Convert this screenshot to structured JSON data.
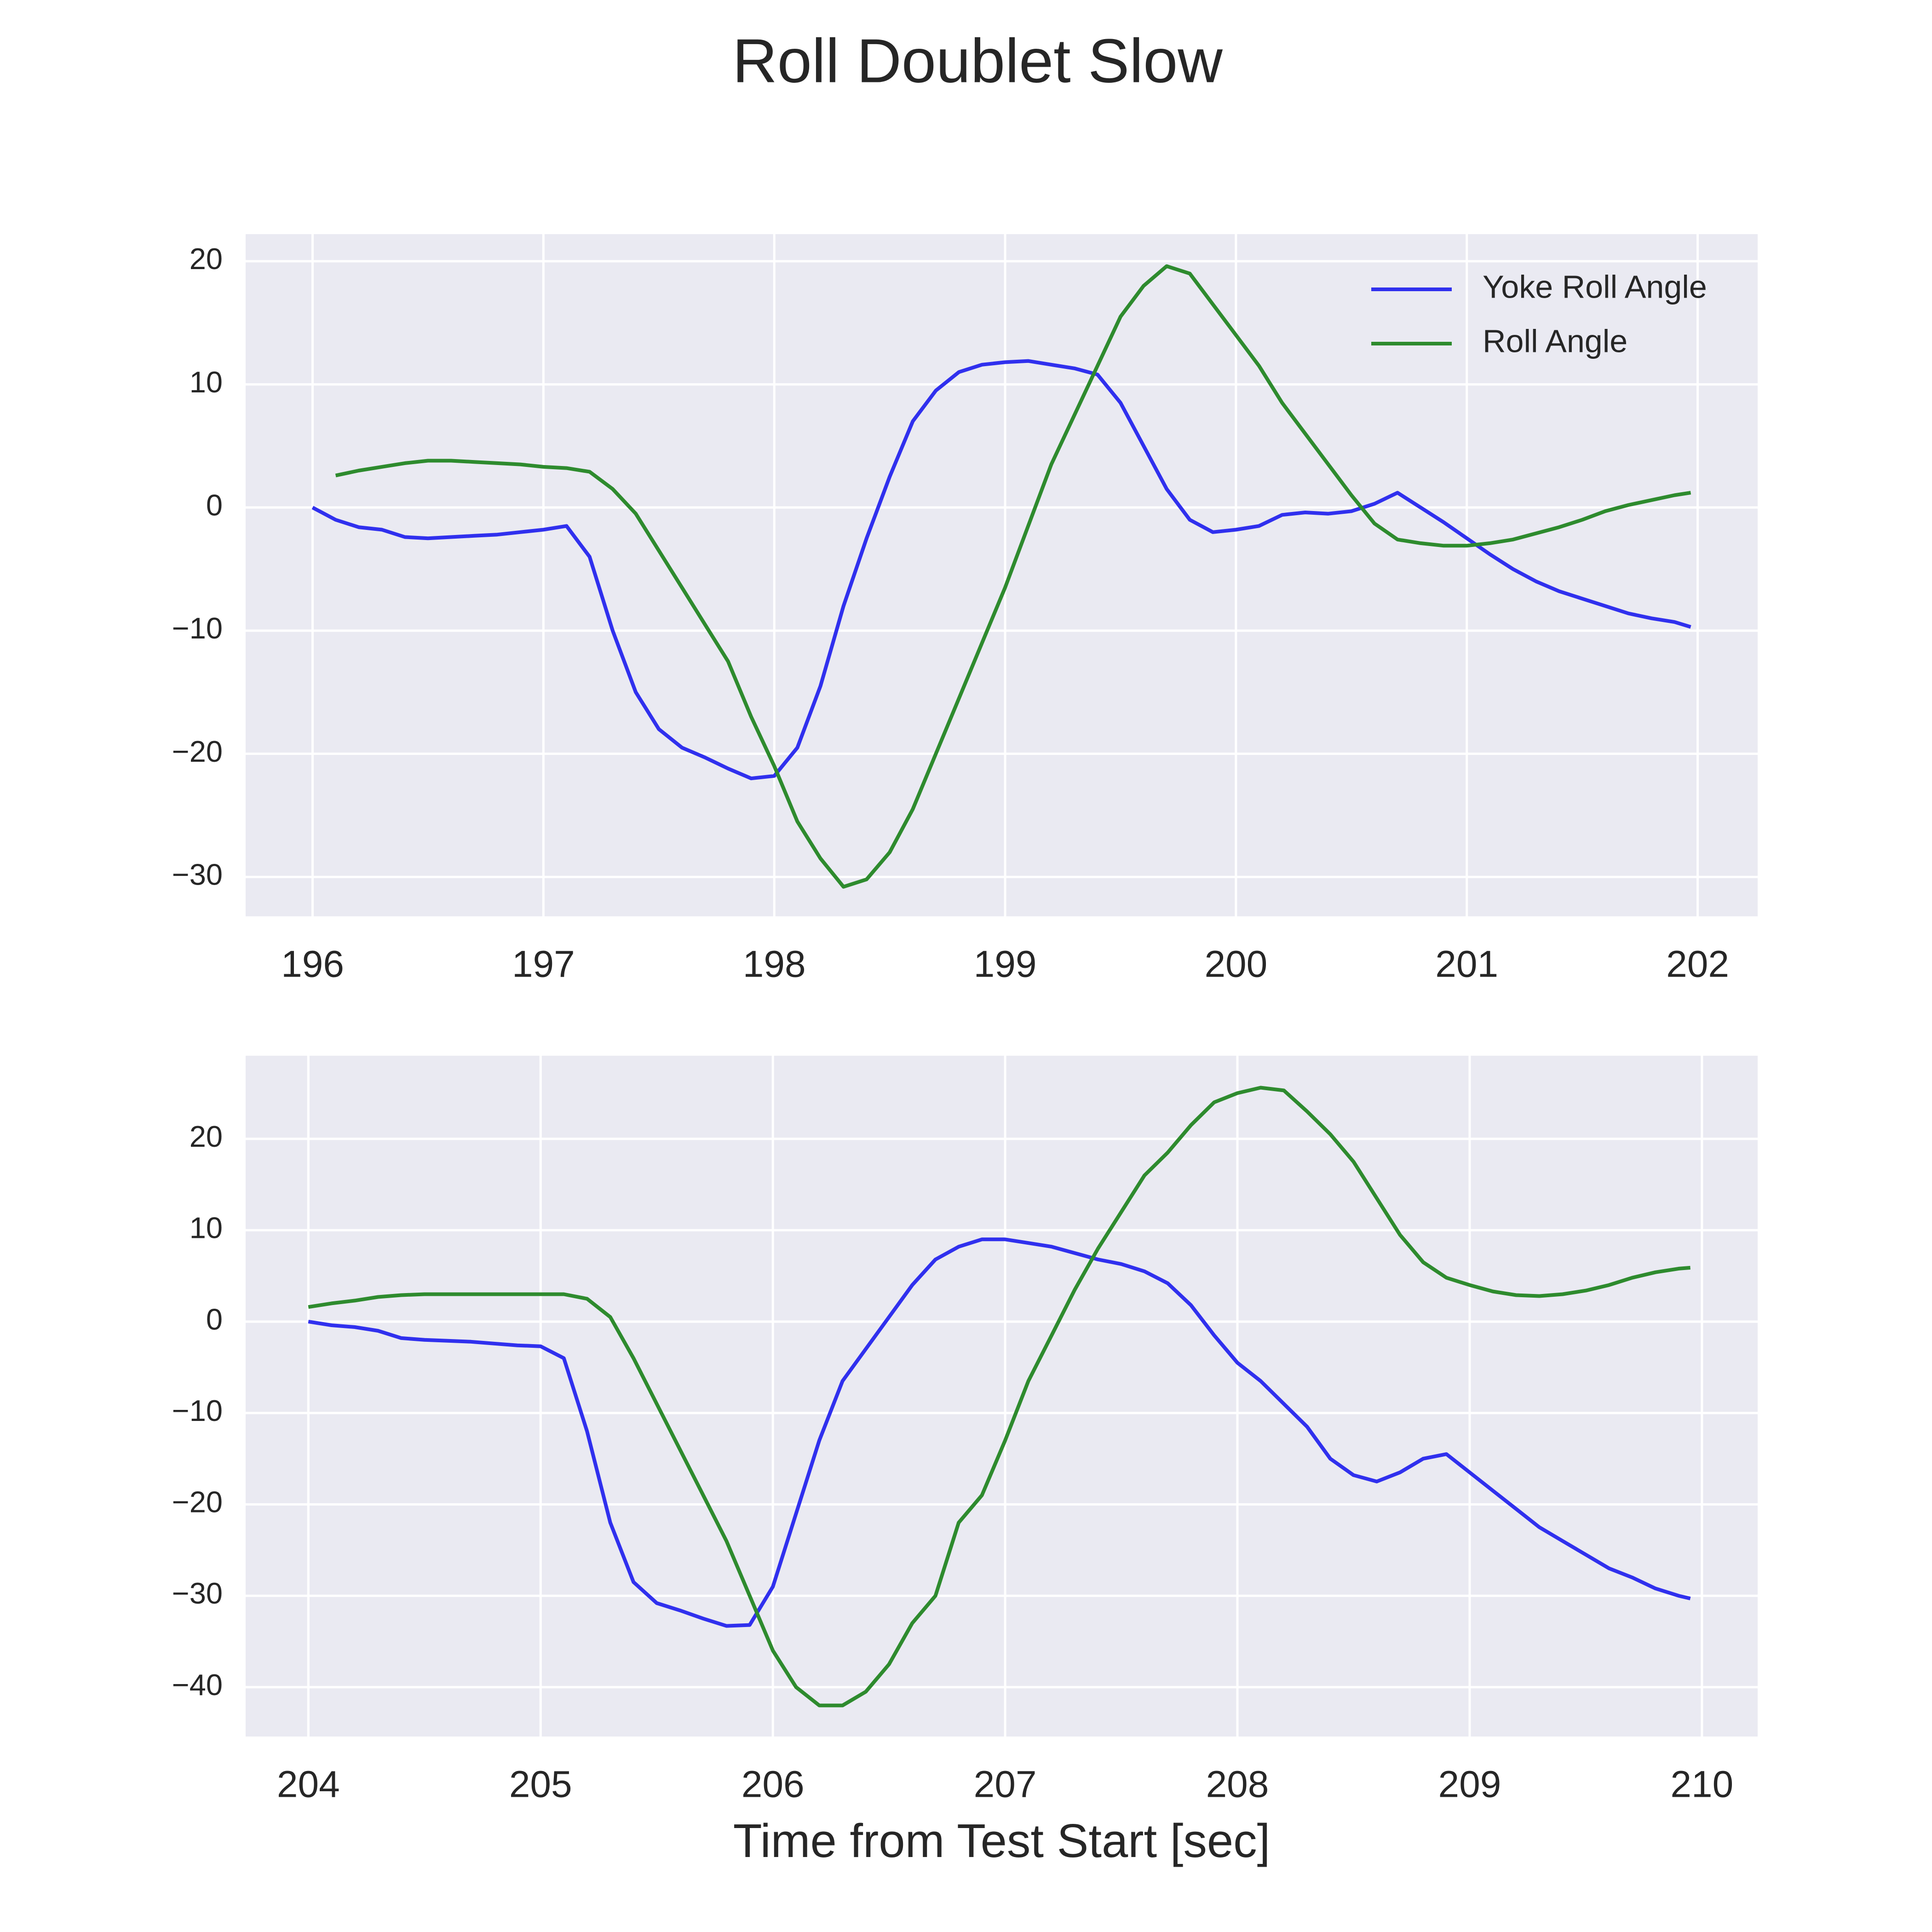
{
  "title": "Roll Doublet Slow",
  "chart_data": [
    {
      "type": "line",
      "x": [
        196.0,
        196.1,
        196.2,
        196.3,
        196.4,
        196.5,
        196.6,
        196.7,
        196.8,
        196.9,
        197.0,
        197.1,
        197.2,
        197.3,
        197.4,
        197.5,
        197.6,
        197.7,
        197.8,
        197.9,
        198.0,
        198.1,
        198.2,
        198.3,
        198.4,
        198.5,
        198.6,
        198.7,
        198.8,
        198.9,
        199.0,
        199.1,
        199.2,
        199.3,
        199.4,
        199.5,
        199.6,
        199.7,
        199.8,
        199.9,
        200.0,
        200.1,
        200.2,
        200.3,
        200.4,
        200.5,
        200.6,
        200.7,
        200.8,
        200.9,
        201.0,
        201.1,
        201.2,
        201.3,
        201.4,
        201.5,
        201.6,
        201.7,
        201.8,
        201.9,
        201.97
      ],
      "series": [
        {
          "name": "Yoke Roll Angle",
          "color": "#3030ee",
          "values": [
            0,
            -1,
            -1.6,
            -1.8,
            -2.4,
            -2.5,
            -2.4,
            -2.3,
            -2.2,
            -2.0,
            -1.8,
            -1.5,
            -4,
            -10,
            -15,
            -18,
            -19.5,
            -20.3,
            -21.2,
            -22,
            -21.8,
            -19.5,
            -14.5,
            -8,
            -2.5,
            2.5,
            7,
            9.5,
            11,
            11.6,
            11.8,
            11.9,
            11.6,
            11.3,
            10.8,
            8.5,
            5,
            1.5,
            -1,
            -2,
            -1.8,
            -1.5,
            -0.6,
            -0.4,
            -0.5,
            -0.3,
            0.3,
            1.2,
            0,
            -1.2,
            -2.5,
            -3.8,
            -5,
            -6,
            -6.8,
            -7.4,
            -8,
            -8.6,
            -9,
            -9.3,
            -9.7
          ]
        },
        {
          "name": "Roll Angle",
          "color": "#2e8b2e",
          "values": [
            null,
            2.6,
            3.0,
            3.3,
            3.6,
            3.8,
            3.8,
            3.7,
            3.6,
            3.5,
            3.3,
            3.2,
            2.9,
            1.5,
            -0.5,
            -3.5,
            -6.5,
            -9.5,
            -12.5,
            -17,
            -21,
            -25.5,
            -28.5,
            -30.8,
            -30.2,
            -28,
            -24.5,
            -20,
            -15.5,
            -11,
            -6.5,
            -1.5,
            3.5,
            7.5,
            11.5,
            15.5,
            18,
            19.6,
            19,
            16.5,
            14,
            11.5,
            8.5,
            6,
            3.5,
            1,
            -1.3,
            -2.6,
            -2.9,
            -3.1,
            -3.1,
            -2.9,
            -2.6,
            -2.1,
            -1.6,
            -1,
            -0.3,
            0.2,
            0.6,
            1.0,
            1.2
          ]
        }
      ],
      "xlim": [
        195.71,
        202.26
      ],
      "xticks": [
        196,
        197,
        198,
        199,
        200,
        201,
        202
      ],
      "ylim": [
        -33.2,
        22.2
      ],
      "yticks": [
        {
          "value": -30,
          "label": "−30"
        },
        {
          "value": -20,
          "label": "−20"
        },
        {
          "value": -10,
          "label": "−10"
        },
        0,
        10,
        20
      ],
      "grid": true,
      "legend": "upper right"
    },
    {
      "type": "line",
      "x": [
        204.0,
        204.1,
        204.2,
        204.3,
        204.4,
        204.5,
        204.6,
        204.7,
        204.8,
        204.9,
        205.0,
        205.1,
        205.2,
        205.3,
        205.4,
        205.5,
        205.6,
        205.7,
        205.8,
        205.9,
        206.0,
        206.1,
        206.2,
        206.3,
        206.4,
        206.5,
        206.6,
        206.7,
        206.8,
        206.9,
        207.0,
        207.1,
        207.2,
        207.3,
        207.4,
        207.5,
        207.6,
        207.7,
        207.8,
        207.9,
        208.0,
        208.1,
        208.2,
        208.3,
        208.4,
        208.5,
        208.6,
        208.7,
        208.8,
        208.9,
        209.0,
        209.1,
        209.2,
        209.3,
        209.4,
        209.5,
        209.6,
        209.7,
        209.8,
        209.9,
        209.95
      ],
      "series": [
        {
          "name": "Yoke Roll Angle",
          "color": "#3030ee",
          "values": [
            0,
            -0.4,
            -0.6,
            -1.0,
            -1.8,
            -2.0,
            -2.1,
            -2.2,
            -2.4,
            -2.6,
            -2.7,
            -4,
            -12,
            -22,
            -28.5,
            -30.8,
            -31.6,
            -32.5,
            -33.3,
            -33.2,
            -29,
            -21,
            -13,
            -6.5,
            -3,
            0.5,
            4,
            6.8,
            8.2,
            9.0,
            9.0,
            8.6,
            8.2,
            7.5,
            6.8,
            6.3,
            5.5,
            4.2,
            1.8,
            -1.5,
            -4.5,
            -6.5,
            -9,
            -11.5,
            -15,
            -16.8,
            -17.5,
            -16.5,
            -15,
            -14.5,
            -16.5,
            -18.5,
            -20.5,
            -22.5,
            -24,
            -25.5,
            -27,
            -28,
            -29.2,
            -30,
            -30.3
          ]
        },
        {
          "name": "Roll Angle",
          "color": "#2e8b2e",
          "values": [
            1.6,
            2.0,
            2.3,
            2.7,
            2.9,
            3.0,
            3.0,
            3.0,
            3.0,
            3.0,
            3.0,
            3.0,
            2.5,
            0.5,
            -4,
            -9,
            -14,
            -19,
            -24,
            -30,
            -36,
            -40,
            -42,
            -42,
            -40.5,
            -37.5,
            -33,
            -30,
            -22,
            -19,
            -13,
            -6.5,
            -1.5,
            3.5,
            8,
            12,
            16,
            18.5,
            21.5,
            24,
            25,
            25.6,
            25.3,
            23,
            20.5,
            17.5,
            13.5,
            9.5,
            6.5,
            4.8,
            4.0,
            3.3,
            2.9,
            2.8,
            3.0,
            3.4,
            4.0,
            4.8,
            5.4,
            5.8,
            5.9
          ]
        }
      ],
      "xlim": [
        203.73,
        210.24
      ],
      "xticks": [
        204,
        205,
        206,
        207,
        208,
        209,
        210
      ],
      "ylim": [
        -45.4,
        29.1
      ],
      "yticks": [
        {
          "value": -40,
          "label": "−40"
        },
        {
          "value": -30,
          "label": "−30"
        },
        {
          "value": -20,
          "label": "−20"
        },
        {
          "value": -10,
          "label": "−10"
        },
        0,
        10,
        20
      ],
      "xlabel": "Time from Test Start [sec]",
      "grid": true
    }
  ]
}
